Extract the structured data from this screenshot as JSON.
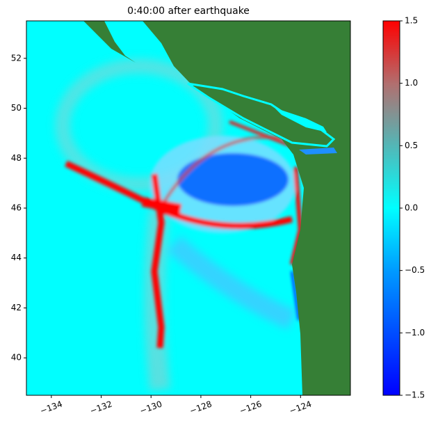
{
  "chart_data": {
    "type": "heatmap",
    "title": "0:40:00 after earthquake",
    "xlim": [
      -135,
      -122
    ],
    "xticks": [
      {
        "value": -134,
        "label": "−134"
      },
      {
        "value": -132,
        "label": "−132"
      },
      {
        "value": -130,
        "label": "−130"
      },
      {
        "value": -128,
        "label": "−128"
      },
      {
        "value": -126,
        "label": "−126"
      },
      {
        "value": -124,
        "label": "−124"
      }
    ],
    "ylim": [
      38.5,
      53.5
    ],
    "yticks": [
      40,
      42,
      44,
      46,
      48,
      50,
      52
    ],
    "clim": [
      -1.5,
      1.5
    ],
    "cticks": [
      {
        "value": -1.5,
        "label": "−1.5"
      },
      {
        "value": -1.0,
        "label": "−1.0"
      },
      {
        "value": -0.5,
        "label": "−0.5"
      },
      {
        "value": 0.0,
        "label": "0.0"
      },
      {
        "value": 0.5,
        "label": "0.5"
      },
      {
        "value": 1.0,
        "label": "1.0"
      },
      {
        "value": 1.5,
        "label": "1.5"
      }
    ]
  }
}
